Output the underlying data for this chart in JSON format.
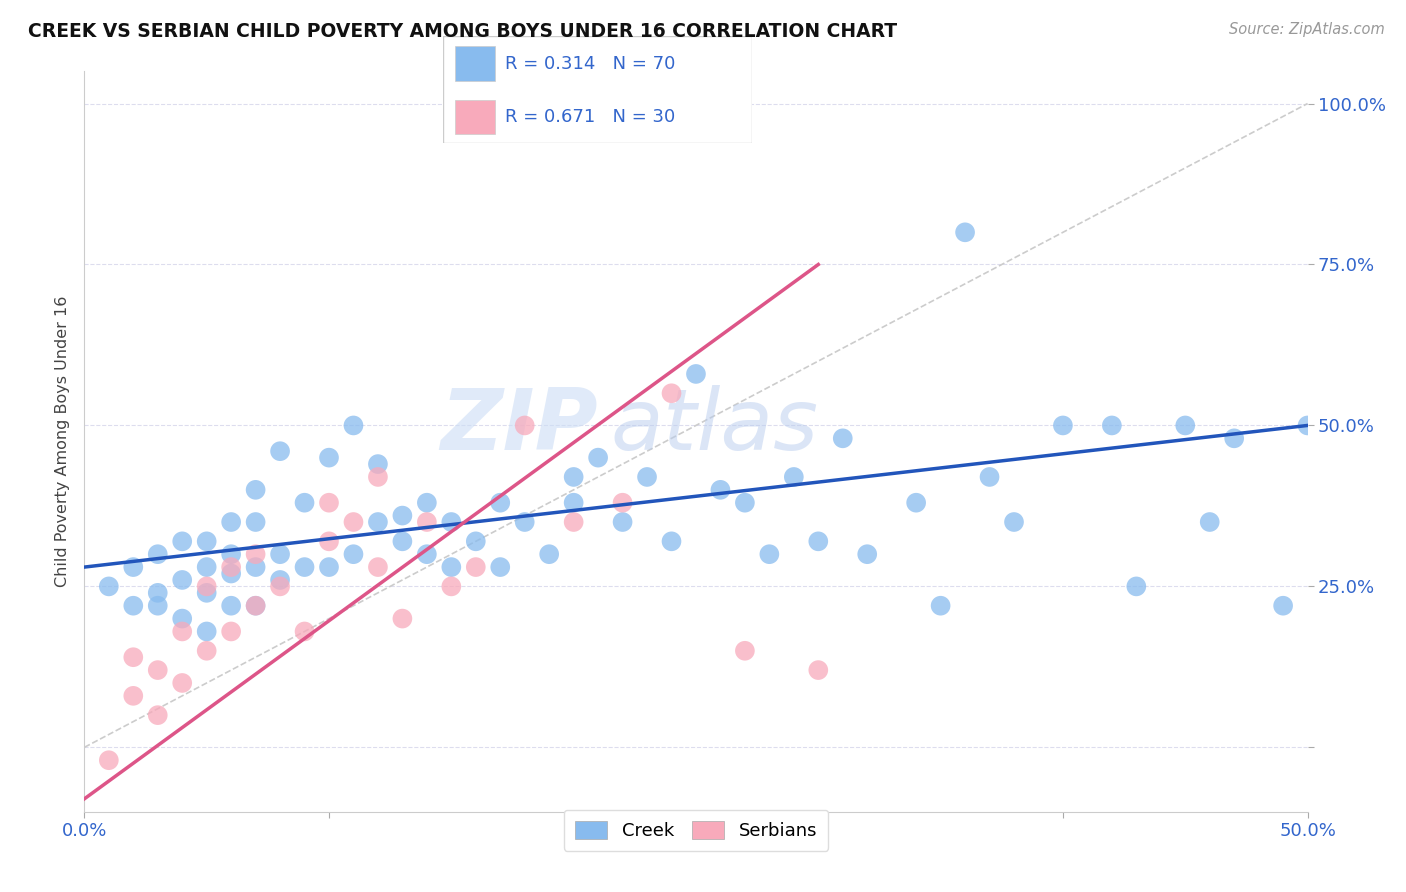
{
  "title": "CREEK VS SERBIAN CHILD POVERTY AMONG BOYS UNDER 16 CORRELATION CHART",
  "source_text": "Source: ZipAtlas.com",
  "ylabel": "Child Poverty Among Boys Under 16",
  "xlim": [
    0,
    0.5
  ],
  "ylim": [
    -0.1,
    1.05
  ],
  "creek_R": 0.314,
  "creek_N": 70,
  "serbian_R": 0.671,
  "serbian_N": 30,
  "creek_color": "#88bbee",
  "serbian_color": "#f8aabb",
  "creek_line_color": "#2255bb",
  "serbian_line_color": "#dd5588",
  "ref_line_color": "#cccccc",
  "watermark_zip": "ZIP",
  "watermark_atlas": "atlas",
  "background_color": "#ffffff",
  "grid_color": "#ddddee",
  "creek_x": [
    0.01,
    0.02,
    0.02,
    0.03,
    0.03,
    0.03,
    0.04,
    0.04,
    0.04,
    0.05,
    0.05,
    0.05,
    0.05,
    0.06,
    0.06,
    0.06,
    0.06,
    0.07,
    0.07,
    0.07,
    0.07,
    0.08,
    0.08,
    0.08,
    0.09,
    0.09,
    0.1,
    0.1,
    0.11,
    0.11,
    0.12,
    0.12,
    0.13,
    0.13,
    0.14,
    0.14,
    0.15,
    0.15,
    0.16,
    0.17,
    0.17,
    0.18,
    0.19,
    0.2,
    0.2,
    0.21,
    0.22,
    0.23,
    0.24,
    0.25,
    0.26,
    0.27,
    0.28,
    0.29,
    0.3,
    0.31,
    0.32,
    0.34,
    0.35,
    0.36,
    0.37,
    0.38,
    0.4,
    0.42,
    0.43,
    0.45,
    0.46,
    0.47,
    0.49,
    0.5
  ],
  "creek_y": [
    0.25,
    0.28,
    0.22,
    0.24,
    0.3,
    0.22,
    0.26,
    0.32,
    0.2,
    0.28,
    0.24,
    0.32,
    0.18,
    0.27,
    0.35,
    0.22,
    0.3,
    0.28,
    0.4,
    0.22,
    0.35,
    0.26,
    0.3,
    0.46,
    0.28,
    0.38,
    0.28,
    0.45,
    0.3,
    0.5,
    0.35,
    0.44,
    0.32,
    0.36,
    0.3,
    0.38,
    0.28,
    0.35,
    0.32,
    0.28,
    0.38,
    0.35,
    0.3,
    0.38,
    0.42,
    0.45,
    0.35,
    0.42,
    0.32,
    0.58,
    0.4,
    0.38,
    0.3,
    0.42,
    0.32,
    0.48,
    0.3,
    0.38,
    0.22,
    0.8,
    0.42,
    0.35,
    0.5,
    0.5,
    0.25,
    0.5,
    0.35,
    0.48,
    0.22,
    0.5
  ],
  "serbian_x": [
    0.01,
    0.02,
    0.02,
    0.03,
    0.03,
    0.04,
    0.04,
    0.05,
    0.05,
    0.06,
    0.06,
    0.07,
    0.07,
    0.08,
    0.09,
    0.1,
    0.1,
    0.11,
    0.12,
    0.12,
    0.13,
    0.14,
    0.15,
    0.16,
    0.18,
    0.2,
    0.22,
    0.24,
    0.27,
    0.3
  ],
  "serbian_y": [
    -0.02,
    0.08,
    0.14,
    0.05,
    0.12,
    0.1,
    0.18,
    0.15,
    0.25,
    0.18,
    0.28,
    0.22,
    0.3,
    0.25,
    0.18,
    0.32,
    0.38,
    0.35,
    0.28,
    0.42,
    0.2,
    0.35,
    0.25,
    0.28,
    0.5,
    0.35,
    0.38,
    0.55,
    0.15,
    0.12
  ],
  "creek_line_x0": 0.0,
  "creek_line_x1": 0.5,
  "creek_line_y0": 0.28,
  "creek_line_y1": 0.5,
  "serbian_line_x0": 0.0,
  "serbian_line_x1": 0.3,
  "serbian_line_y0": -0.08,
  "serbian_line_y1": 0.75
}
